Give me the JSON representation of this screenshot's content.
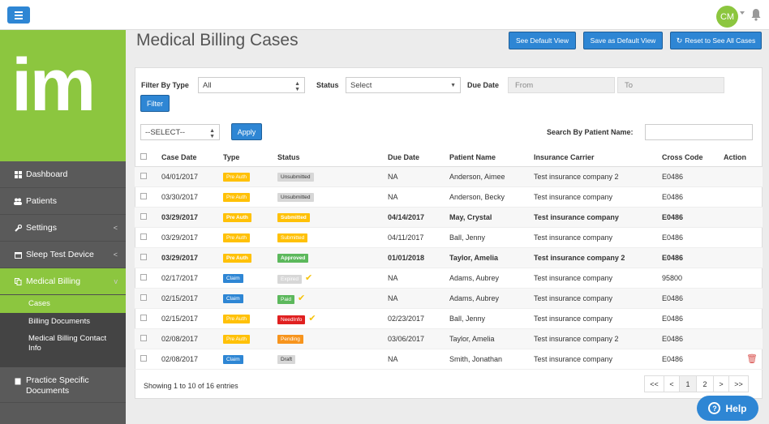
{
  "topbar": {
    "avatar_initials": "CM"
  },
  "logo": {
    "text": "im"
  },
  "sidebar": {
    "items": [
      {
        "label": "Dashboard",
        "icon": "grid-icon",
        "chevron": ""
      },
      {
        "label": "Patients",
        "icon": "users-icon",
        "chevron": ""
      },
      {
        "label": "Settings",
        "icon": "wrench-icon",
        "chevron": "<"
      },
      {
        "label": "Sleep Test Device",
        "icon": "calendar-icon",
        "chevron": "<"
      },
      {
        "label": "Medical Billing",
        "icon": "copy-icon",
        "chevron": "v"
      }
    ],
    "submenu": [
      "Cases",
      "Billing Documents",
      "Medical Billing Contact Info"
    ],
    "footer_item": "Practice Specific Documents"
  },
  "page_title": "Medical Billing Cases",
  "header_buttons": {
    "default_view": "See Default View",
    "save_default": "Save as Default View",
    "reset_all": "Reset to See All Cases"
  },
  "filters": {
    "filter_by_type_label": "Filter By Type",
    "type_value": "All",
    "status_label": "Status",
    "status_value": "Select",
    "due_date_label": "Due Date",
    "from_placeholder": "From",
    "to_placeholder": "To",
    "filter_button": "Filter",
    "bulk_select_value": "--SELECT--",
    "apply_button": "Apply",
    "search_label": "Search By Patient Name:"
  },
  "table": {
    "columns": [
      "Case Date",
      "Type",
      "Status",
      "Due Date",
      "Patient Name",
      "Insurance Carrier",
      "Cross Code",
      "Action"
    ],
    "rows": [
      {
        "case_date": "04/01/2017",
        "type": "Pre Auth",
        "status": "Unsubmitted",
        "due_date": "NA",
        "patient": "Anderson, Aimee",
        "carrier": "Test insurance company 2",
        "code": "E0486",
        "bold": false,
        "check": false,
        "trash": false
      },
      {
        "case_date": "03/30/2017",
        "type": "Pre Auth",
        "status": "Unsubmitted",
        "due_date": "NA",
        "patient": "Anderson, Becky",
        "carrier": "Test insurance company",
        "code": "E0486",
        "bold": false,
        "check": false,
        "trash": false
      },
      {
        "case_date": "03/29/2017",
        "type": "Pre Auth",
        "status": "Submitted",
        "due_date": "04/14/2017",
        "patient": "May, Crystal",
        "carrier": "Test insurance company",
        "code": "E0486",
        "bold": true,
        "check": false,
        "trash": false
      },
      {
        "case_date": "03/29/2017",
        "type": "Pre Auth",
        "status": "Submitted",
        "due_date": "04/11/2017",
        "patient": "Ball, Jenny",
        "carrier": "Test insurance company",
        "code": "E0486",
        "bold": false,
        "check": false,
        "trash": false
      },
      {
        "case_date": "03/29/2017",
        "type": "Pre Auth",
        "status": "Approved",
        "due_date": "01/01/2018",
        "patient": "Taylor, Amelia",
        "carrier": "Test insurance company 2",
        "code": "E0486",
        "bold": true,
        "check": false,
        "trash": false
      },
      {
        "case_date": "02/17/2017",
        "type": "Claim",
        "status": "Expired",
        "due_date": "NA",
        "patient": "Adams, Aubrey",
        "carrier": "Test insurance company",
        "code": "95800",
        "bold": false,
        "check": true,
        "trash": false
      },
      {
        "case_date": "02/15/2017",
        "type": "Claim",
        "status": "Paid",
        "due_date": "NA",
        "patient": "Adams, Aubrey",
        "carrier": "Test insurance company",
        "code": "E0486",
        "bold": false,
        "check": true,
        "trash": false
      },
      {
        "case_date": "02/15/2017",
        "type": "Pre Auth",
        "status": "NeedInfo",
        "due_date": "02/23/2017",
        "patient": "Ball, Jenny",
        "carrier": "Test insurance company",
        "code": "E0486",
        "bold": false,
        "check": true,
        "trash": false
      },
      {
        "case_date": "02/08/2017",
        "type": "Pre Auth",
        "status": "Pending",
        "due_date": "03/06/2017",
        "patient": "Taylor, Amelia",
        "carrier": "Test insurance company 2",
        "code": "E0486",
        "bold": false,
        "check": false,
        "trash": false
      },
      {
        "case_date": "02/08/2017",
        "type": "Claim",
        "status": "Draft",
        "due_date": "NA",
        "patient": "Smith, Jonathan",
        "carrier": "Test insurance company",
        "code": "E0486",
        "bold": false,
        "check": false,
        "trash": true
      }
    ]
  },
  "footer": {
    "entries_text": "Showing 1 to 10 of 16 entries",
    "pages": [
      "<<",
      "<",
      "1",
      "2",
      ">",
      ">>"
    ]
  },
  "help_button": "Help",
  "colors": {
    "brand_green": "#8cc63f",
    "primary_blue": "#2e86d4",
    "type_pre_auth": "#ffc107",
    "type_claim": "#2e86d4",
    "status_unsubmitted": "#d7d7d7",
    "status_submitted": "#ffc107",
    "status_approved": "#5cb85c",
    "status_expired": "#d7d7d7",
    "status_paid": "#5cb85c",
    "status_needinfo": "#e02020",
    "status_pending": "#f7941d",
    "status_draft": "#d7d7d7"
  }
}
